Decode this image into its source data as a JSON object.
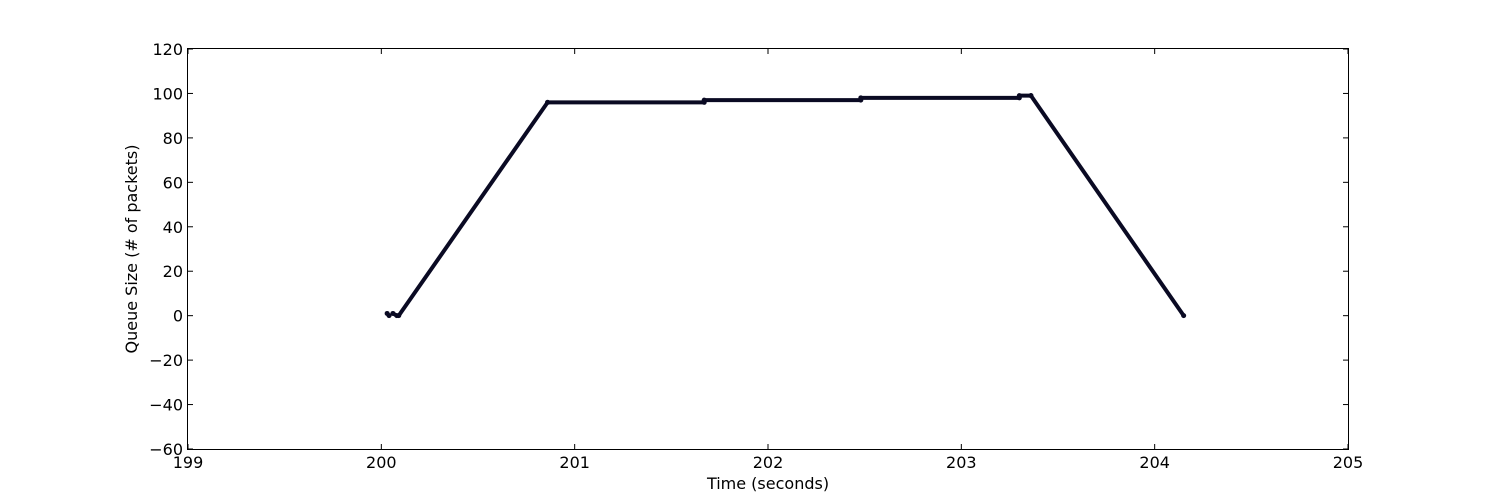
{
  "chart_data": {
    "type": "scatter",
    "title": "",
    "xlabel": "Time (seconds)",
    "ylabel": "Queue Size (# of packets)",
    "xlim": [
      199,
      205
    ],
    "ylim": [
      -60,
      120
    ],
    "xticks": [
      199,
      200,
      201,
      202,
      203,
      204,
      205
    ],
    "yticks": [
      120,
      100,
      80,
      60,
      40,
      20,
      0,
      -20,
      -40,
      -60
    ],
    "xtick_labels": [
      "199",
      "200",
      "201",
      "202",
      "203",
      "204",
      "205"
    ],
    "ytick_labels": [
      "120",
      "100",
      "80",
      "60",
      "40",
      "20",
      "0",
      "−20",
      "−40",
      "−60"
    ],
    "grid": false,
    "legend": "none",
    "marker_color": "#0a0a23",
    "series": [
      {
        "segments": [
          {
            "x": [
              200.03,
              200.04
            ],
            "y": [
              1,
              0
            ]
          },
          {
            "x": [
              200.06,
              200.08
            ],
            "y": [
              1,
              0
            ]
          },
          {
            "x": [
              200.09,
              200.86
            ],
            "y": [
              0,
              96
            ]
          },
          {
            "x": [
              200.86,
              201.67
            ],
            "y": [
              96,
              96
            ]
          },
          {
            "x": [
              201.67,
              202.48
            ],
            "y": [
              97,
              97
            ]
          },
          {
            "x": [
              202.48,
              203.3
            ],
            "y": [
              98,
              98
            ]
          },
          {
            "x": [
              203.3,
              203.36
            ],
            "y": [
              99,
              99
            ]
          },
          {
            "x": [
              203.36,
              204.15
            ],
            "y": [
              99,
              0
            ]
          }
        ]
      }
    ]
  }
}
